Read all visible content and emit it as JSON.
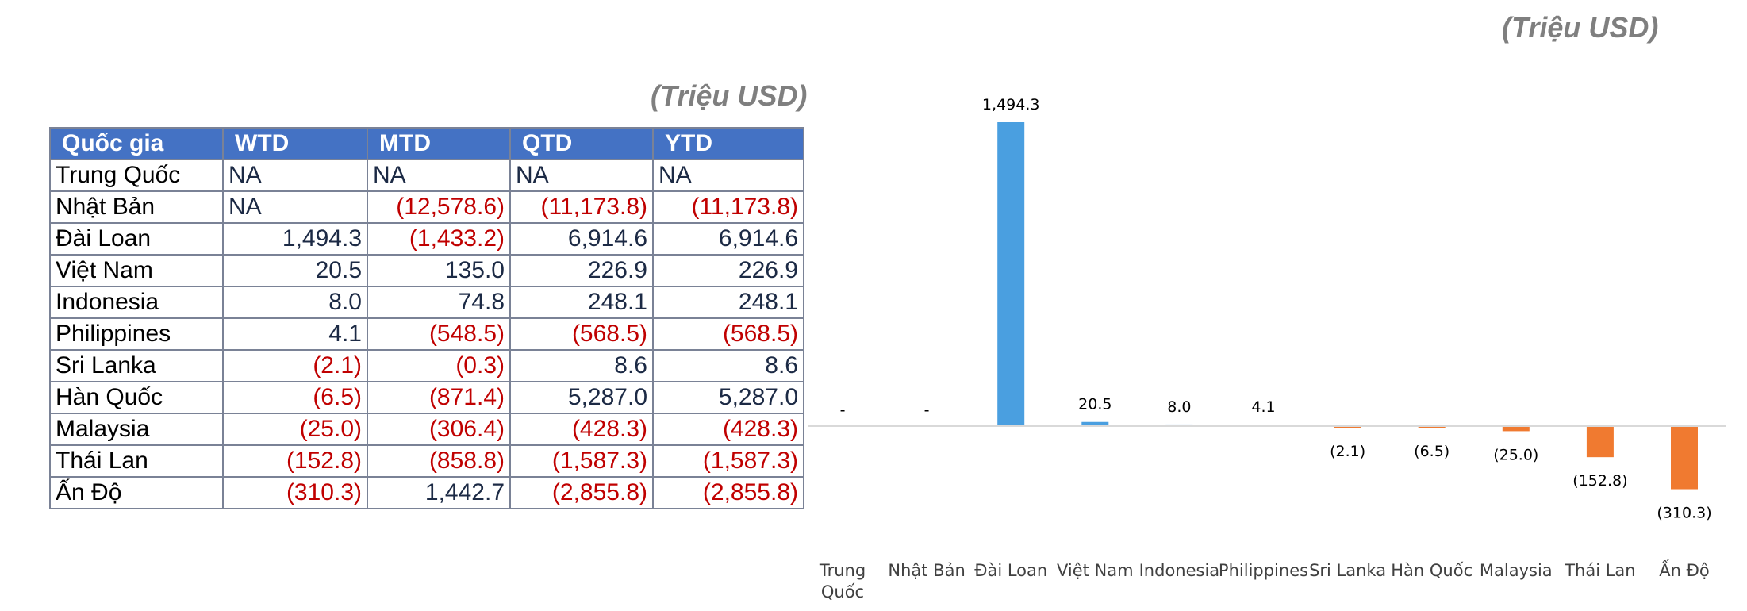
{
  "table": {
    "unit": "(Triệu USD)",
    "headers": [
      "Quốc gia",
      "WTD",
      "MTD",
      "QTD",
      "YTD"
    ],
    "rows": [
      [
        "Trung Quốc",
        "NA",
        "NA",
        "NA",
        "NA"
      ],
      [
        "Nhật Bản",
        "NA",
        "(12,578.6)",
        "(11,173.8)",
        "(11,173.8)"
      ],
      [
        "Đài Loan",
        "1,494.3",
        "(1,433.2)",
        "6,914.6",
        "6,914.6"
      ],
      [
        "Việt Nam",
        "20.5",
        "135.0",
        "226.9",
        "226.9"
      ],
      [
        "Indonesia",
        "8.0",
        "74.8",
        "248.1",
        "248.1"
      ],
      [
        "Philippines",
        "4.1",
        "(548.5)",
        "(568.5)",
        "(568.5)"
      ],
      [
        "Sri Lanka",
        "(2.1)",
        "(0.3)",
        "8.6",
        "8.6"
      ],
      [
        "Hàn Quốc",
        "(6.5)",
        "(871.4)",
        "5,287.0",
        "5,287.0"
      ],
      [
        "Malaysia",
        "(25.0)",
        "(306.4)",
        "(428.3)",
        "(428.3)"
      ],
      [
        "Thái Lan",
        "(152.8)",
        "(858.8)",
        "(1,587.3)",
        "(1,587.3)"
      ],
      [
        "Ấn Độ",
        "(310.3)",
        "1,442.7",
        "(2,855.8)",
        "(2,855.8)"
      ]
    ]
  },
  "chart_data": {
    "type": "bar",
    "unit": "(Triệu USD)",
    "categories": [
      "Trung Quốc",
      "Nhật Bản",
      "Đài Loan",
      "Việt Nam",
      "Indonesia",
      "Philippines",
      "Sri Lanka",
      "Hàn Quốc",
      "Malaysia",
      "Thái Lan",
      "Ấn Độ"
    ],
    "values": [
      null,
      null,
      1494.3,
      20.5,
      8.0,
      4.1,
      -2.1,
      -6.5,
      -25.0,
      -152.8,
      -310.3
    ],
    "labels": [
      "-",
      "-",
      "1,494.3",
      "20.5",
      "8.0",
      "4.1",
      "(2.1)",
      "(6.5)",
      "(25.0)",
      "(152.8)",
      "(310.3)"
    ],
    "ylim": [
      -310.3,
      1494.3
    ],
    "grid": false,
    "legend": "none",
    "colors": {
      "positive": "#4a9fe0",
      "negative": "#f07a30",
      "axis": "#d9d9d9",
      "label": "#000000",
      "category": "#404040"
    }
  }
}
